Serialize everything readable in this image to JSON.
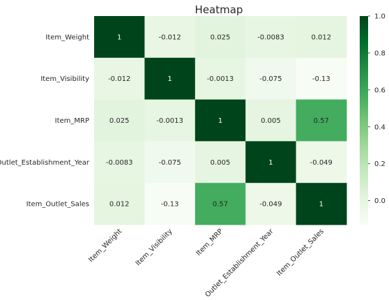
{
  "chart_data": {
    "type": "heatmap",
    "title": "Heatmap",
    "row_labels": [
      "Item_Weight",
      "Item_Visibility",
      "Item_MRP",
      "Outlet_Establishment_Year",
      "Item_Outlet_Sales"
    ],
    "col_labels": [
      "Item_Weight",
      "Item_Visibility",
      "Item_MRP",
      "Outlet_Establishment_Year",
      "Item_Outlet_Sales"
    ],
    "values": [
      [
        1,
        -0.012,
        0.025,
        -0.0083,
        0.012
      ],
      [
        -0.012,
        1,
        -0.0013,
        -0.075,
        -0.13
      ],
      [
        0.025,
        -0.0013,
        1,
        0.005,
        0.57
      ],
      [
        -0.0083,
        -0.075,
        0.005,
        1,
        -0.049
      ],
      [
        0.012,
        -0.13,
        0.57,
        -0.049,
        1
      ]
    ],
    "value_labels": [
      [
        "1",
        "-0.012",
        "0.025",
        "-0.0083",
        "0.012"
      ],
      [
        "-0.012",
        "1",
        "-0.0013",
        "-0.075",
        "-0.13"
      ],
      [
        "0.025",
        "-0.0013",
        "1",
        "0.005",
        "0.57"
      ],
      [
        "-0.0083",
        "-0.075",
        "0.005",
        "1",
        "-0.049"
      ],
      [
        "0.012",
        "-0.13",
        "0.57",
        "-0.049",
        "1"
      ]
    ],
    "colormap": "Greens",
    "color_range": [
      -0.13,
      1
    ],
    "colorbar": {
      "ticks": [
        0,
        0.2,
        0.4,
        0.6,
        0.8,
        1
      ],
      "tick_labels": [
        "0.0",
        "0.2",
        "0.4",
        "0.6",
        "0.8",
        "1.0"
      ],
      "placement": "right"
    },
    "annotated": true,
    "grid": false
  }
}
